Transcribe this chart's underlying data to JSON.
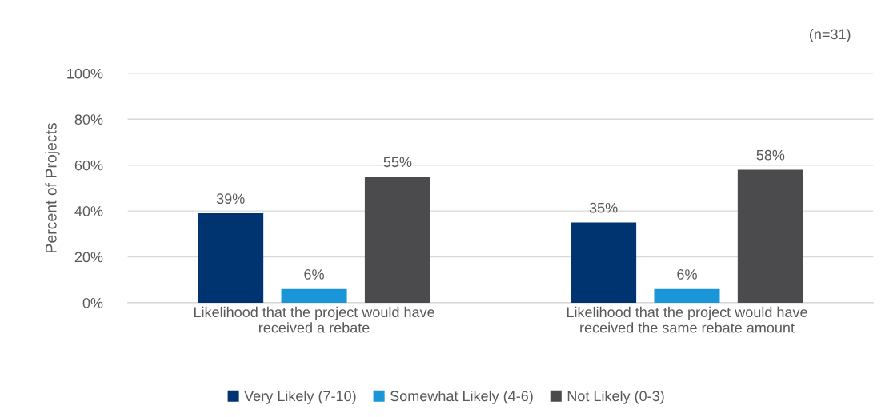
{
  "chart_data": {
    "type": "bar",
    "categories": [
      "Likelihood that the project would have received a rebate",
      "Likelihood that the project would have received the same rebate amount"
    ],
    "series": [
      {
        "name": "Very Likely (7-10)",
        "color": "#003470",
        "values": [
          39,
          35
        ],
        "value_labels": [
          "39%",
          "35%"
        ]
      },
      {
        "name": "Somewhat Likely (4-6)",
        "color": "#1a96d8",
        "values": [
          6,
          6
        ],
        "value_labels": [
          "6%",
          "6%"
        ]
      },
      {
        "name": "Not Likely (0-3)",
        "color": "#4b4b4d",
        "values": [
          55,
          58
        ],
        "value_labels": [
          "55%",
          "58%"
        ]
      }
    ],
    "ylabel": "Percent of Projects",
    "ylim": [
      0,
      100
    ],
    "yticks": [
      {
        "value": 0,
        "label": "0%"
      },
      {
        "value": 20,
        "label": "20%"
      },
      {
        "value": 40,
        "label": "40%"
      },
      {
        "value": 60,
        "label": "60%"
      },
      {
        "value": 80,
        "label": "80%"
      },
      {
        "value": 100,
        "label": "100%"
      }
    ],
    "grid": "y",
    "legend": "bottom",
    "annotations": [
      "(n=31)"
    ]
  }
}
